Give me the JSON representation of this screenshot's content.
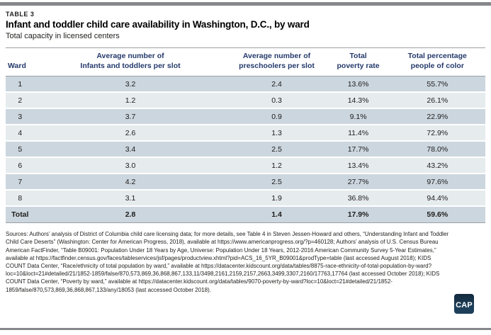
{
  "page": {
    "table_label": "TABLE 3",
    "title": "Infant and toddler child care availability in Washington, D.C., by ward",
    "subtitle": "Total capacity in licensed centers"
  },
  "colors": {
    "accent_navy": "#24396b",
    "stripe_dark": "#ccd6de",
    "stripe_light": "#e6ebee",
    "rule_gray": "#9ba1a6",
    "bar_gray": "#85878a",
    "logo_navy": "#1d3f5a"
  },
  "table": {
    "headers": [
      {
        "line1": "Ward",
        "line2": ""
      },
      {
        "line1": "Average number of",
        "line2": "Infants and toddlers per slot"
      },
      {
        "line1": "Average number of",
        "line2": "preschoolers per slot"
      },
      {
        "line1": "Total",
        "line2": "poverty rate"
      },
      {
        "line1": "Total percentage",
        "line2": "people of color"
      }
    ],
    "rows": [
      {
        "ward": "1",
        "infants": "3.2",
        "preschoolers": "2.4",
        "poverty": "13.6%",
        "people_of_color": "55.7%"
      },
      {
        "ward": "2",
        "infants": "1.2",
        "preschoolers": "0.3",
        "poverty": "14.3%",
        "people_of_color": "26.1%"
      },
      {
        "ward": "3",
        "infants": "3.7",
        "preschoolers": "0.9",
        "poverty": "9.1%",
        "people_of_color": "22.9%"
      },
      {
        "ward": "4",
        "infants": "2.6",
        "preschoolers": "1.3",
        "poverty": "11.4%",
        "people_of_color": "72.9%"
      },
      {
        "ward": "5",
        "infants": "3.4",
        "preschoolers": "2.5",
        "poverty": "17.7%",
        "people_of_color": "78.0%"
      },
      {
        "ward": "6",
        "infants": "3.0",
        "preschoolers": "1.2",
        "poverty": "13.4%",
        "people_of_color": "43.2%"
      },
      {
        "ward": "7",
        "infants": "4.2",
        "preschoolers": "2.5",
        "poverty": "27.7%",
        "people_of_color": "97.6%"
      },
      {
        "ward": "8",
        "infants": "3.1",
        "preschoolers": "1.9",
        "poverty": "36.8%",
        "people_of_color": "94.4%"
      },
      {
        "ward": "Total",
        "infants": "2.8",
        "preschoolers": "1.4",
        "poverty": "17.9%",
        "people_of_color": "59.6%"
      }
    ]
  },
  "footer": {
    "sources": "Sources: Authors’ analysis of District of Columbia child care licensing data; for more details, see Table 4 in Steven Jessen-Howard and others, “Understanding Infant and Toddler Child Care Deserts” (Washington: Center for American Progress, 2018), available at https://www.americanprogress.org/?p=460128; Authors’ analysis of U.S. Census Bureau American FactFinder, “Table B09001: Population Under 18 Years by Age, Universe: Population Under 18 Years, 2012-2016 American Community Survey 5-Year Estimates,” available at https://factfinder.census.gov/faces/tableservices/jsf/pages/productview.xhtml?pid=ACS_16_5YR_B09001&prodType=table (last accessed August 2018); KIDS COUNT Data Center, “Race/ethnicity of total population by ward,” available at https://datacenter.kidscount.org/data/tables/8875-race-ethnicity-of-total-population-by-ward?loc=10&loct=21#detailed/21/1852-1859/false/870,573,869,36,868,867,133,11/3498,2161,2159,2157,2663,3499,3307,2160/17763,17764 (last accessed October 2018); KIDS COUNT Data Center, “Poverty by ward,” available at https://datacenter.kidscount.org/data/tables/9070-poverty-by-ward?loc=10&loct=21#detailed/21/1852-1859/false/870,573,869,36,868,867,133/any/18053 (last accessed October 2018).",
    "logo_text": "CAP"
  }
}
